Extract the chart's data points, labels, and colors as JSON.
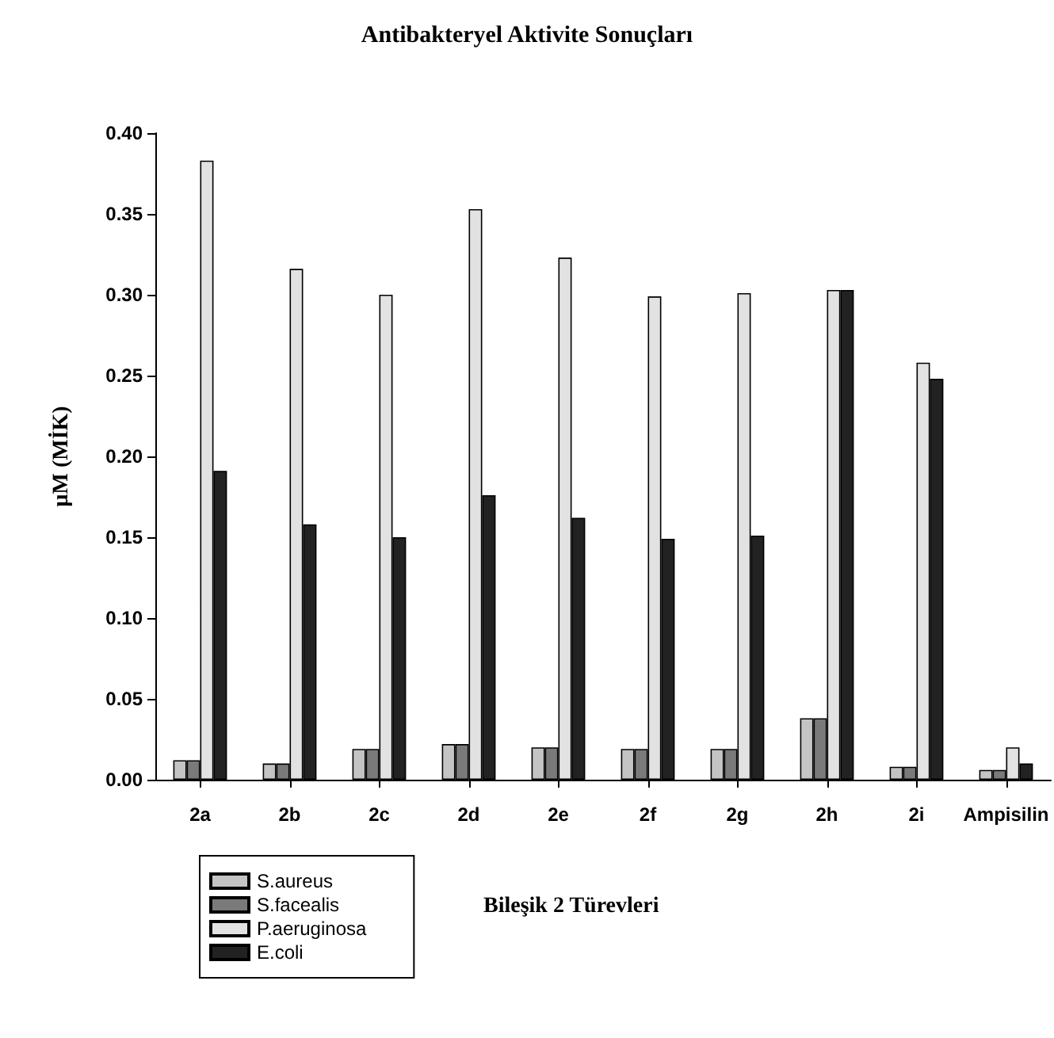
{
  "chart_data": {
    "type": "bar",
    "title": "Antibakteryel Aktivite Sonuçları",
    "xlabel": "Bileşik 2 Türevleri",
    "ylabel": "µM (MİK)",
    "categories": [
      "2a",
      "2b",
      "2c",
      "2d",
      "2e",
      "2f",
      "2g",
      "2h",
      "2i",
      "Ampisilin"
    ],
    "series": [
      {
        "name": "S.aureus",
        "color": "#c4c4c4",
        "values": [
          0.012,
          0.01,
          0.019,
          0.022,
          0.02,
          0.019,
          0.019,
          0.038,
          0.008,
          0.006
        ]
      },
      {
        "name": "S.facealis",
        "color": "#7a7a7a",
        "values": [
          0.012,
          0.01,
          0.019,
          0.022,
          0.02,
          0.019,
          0.019,
          0.038,
          0.008,
          0.006
        ]
      },
      {
        "name": "P.aeruginosa",
        "color": "#e2e2e2",
        "values": [
          0.383,
          0.316,
          0.3,
          0.353,
          0.323,
          0.299,
          0.301,
          0.303,
          0.258,
          0.02
        ]
      },
      {
        "name": "E.coli",
        "color": "#222222",
        "values": [
          0.191,
          0.158,
          0.15,
          0.176,
          0.162,
          0.149,
          0.151,
          0.303,
          0.248,
          0.01
        ]
      }
    ],
    "ylim": [
      0,
      0.4
    ],
    "yticks": [
      {
        "value": 0,
        "label": "0.00"
      },
      {
        "value": 0.05,
        "label": "0.05"
      },
      {
        "value": 0.1,
        "label": "0.10"
      },
      {
        "value": 0.15,
        "label": "0.15"
      },
      {
        "value": 0.2,
        "label": "0.20"
      },
      {
        "value": 0.25,
        "label": "0.25"
      },
      {
        "value": 0.3,
        "label": "0.30"
      },
      {
        "value": 0.35,
        "label": "0.35"
      },
      {
        "value": 0.4,
        "label": "0.40"
      }
    ],
    "grid": false,
    "legend": "bottom left"
  }
}
